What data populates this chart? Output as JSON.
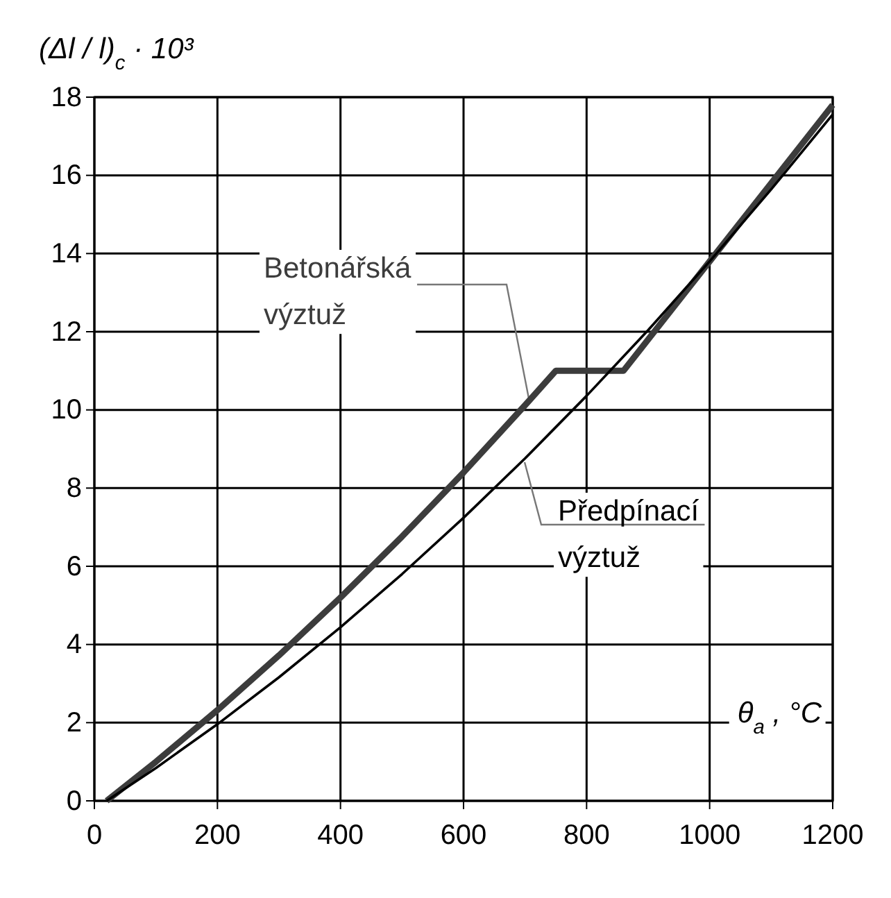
{
  "chart_data": {
    "type": "line",
    "xlabel": "θ$_{a}$ , °C",
    "ylabel": "(Δl / l)$_{c}$ · 10³",
    "xlim": [
      0,
      1200
    ],
    "xticks": [
      0,
      200,
      400,
      600,
      800,
      1000,
      1200
    ],
    "ylim": [
      0,
      18
    ],
    "yticks": [
      0,
      2,
      4,
      6,
      8,
      10,
      12,
      14,
      16,
      18
    ],
    "grid": true,
    "legend": false,
    "marker": "none",
    "line_style": "solid",
    "series": [
      {
        "name": "Betonářská výztuž",
        "color": "#3c3c3c",
        "x": [
          20,
          100,
          200,
          300,
          400,
          500,
          600,
          700,
          750,
          860,
          900,
          1000,
          1100,
          1200
        ],
        "values": [
          0,
          1.0,
          2.32,
          3.72,
          5.2,
          6.76,
          8.4,
          10.12,
          11.0,
          11.0,
          11.8,
          13.8,
          15.8,
          17.8
        ]
      },
      {
        "name": "Předpínací výztuž",
        "color": "#000000",
        "x": [
          20,
          100,
          200,
          300,
          400,
          500,
          600,
          700,
          800,
          900,
          1000,
          1100,
          1200
        ],
        "values": [
          0,
          0.84,
          1.96,
          3.16,
          4.44,
          5.8,
          7.24,
          8.76,
          10.36,
          12.04,
          13.8,
          15.64,
          17.56
        ]
      }
    ]
  }
}
